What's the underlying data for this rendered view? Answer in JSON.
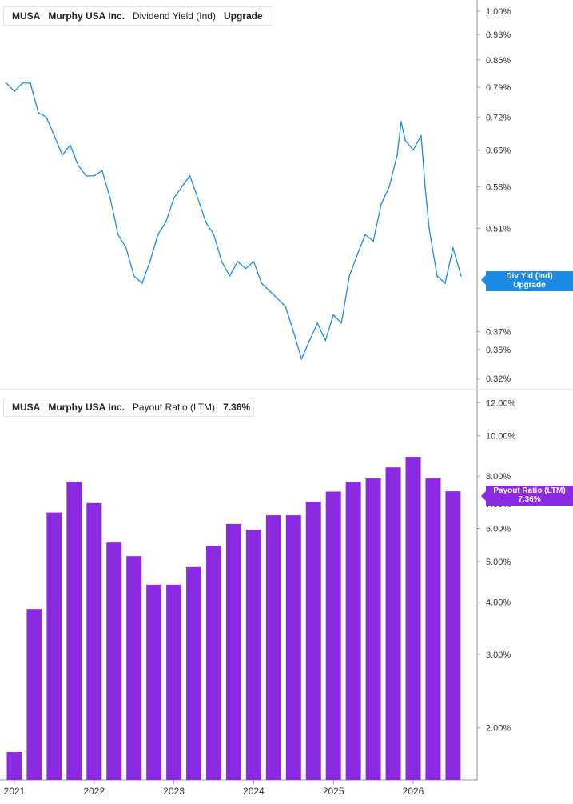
{
  "top_panel": {
    "ticker": "MUSA",
    "company": "Murphy USA Inc.",
    "metric": "Dividend Yield (Ind)",
    "value": "Upgrade",
    "flag_line1": "Div Yld (Ind)",
    "flag_line2": "Upgrade",
    "flag_hidden_tick": "0.4",
    "color": "#1a8ce6"
  },
  "bottom_panel": {
    "ticker": "MUSA",
    "company": "Murphy USA Inc.",
    "metric": "Payout Ratio (LTM)",
    "value": "7.36%",
    "flag_line1": "Payout Ratio (LTM)",
    "flag_line2": "7.36%",
    "flag_hidden_tick": "7.00%",
    "color": "#8a2be2"
  },
  "chart_data": [
    {
      "type": "line",
      "series": [
        {
          "name": "Dividend Yield (Ind)",
          "x": [
            2020.9,
            2021.0,
            2021.1,
            2021.2,
            2021.3,
            2021.4,
            2021.5,
            2021.6,
            2021.7,
            2021.8,
            2021.9,
            2022.0,
            2022.1,
            2022.2,
            2022.25,
            2022.3,
            2022.4,
            2022.5,
            2022.6,
            2022.7,
            2022.8,
            2022.9,
            2023.0,
            2023.1,
            2023.2,
            2023.3,
            2023.4,
            2023.5,
            2023.6,
            2023.7,
            2023.8,
            2023.9,
            2024.0,
            2024.1,
            2024.2,
            2024.3,
            2024.4,
            2024.5,
            2024.6,
            2024.7,
            2024.8,
            2024.9,
            2025.0,
            2025.1,
            2025.2,
            2025.3,
            2025.4,
            2025.5,
            2025.6,
            2025.7,
            2025.8,
            2025.85,
            2025.9,
            2026.0,
            2026.1,
            2026.15,
            2026.2,
            2026.3,
            2026.4,
            2026.5,
            2026.6
          ],
          "y": [
            0.8,
            0.78,
            0.8,
            0.8,
            0.73,
            0.72,
            0.68,
            0.64,
            0.66,
            0.62,
            0.6,
            0.6,
            0.61,
            0.56,
            0.53,
            0.5,
            0.48,
            0.44,
            0.43,
            0.46,
            0.5,
            0.52,
            0.56,
            0.58,
            0.6,
            0.56,
            0.52,
            0.5,
            0.46,
            0.44,
            0.46,
            0.45,
            0.46,
            0.43,
            0.42,
            0.41,
            0.4,
            0.37,
            0.34,
            0.36,
            0.38,
            0.36,
            0.39,
            0.38,
            0.44,
            0.47,
            0.5,
            0.49,
            0.55,
            0.58,
            0.64,
            0.71,
            0.67,
            0.65,
            0.68,
            0.58,
            0.51,
            0.44,
            0.43,
            0.48,
            0.44
          ]
        }
      ],
      "y_ticks": [
        "1.00%",
        "0.93%",
        "0.86%",
        "0.79%",
        "0.72%",
        "0.65%",
        "0.58%",
        "0.51%",
        "0.37%",
        "0.35%",
        "0.32%"
      ],
      "y_tick_values": [
        1.0,
        0.93,
        0.86,
        0.79,
        0.72,
        0.65,
        0.58,
        0.51,
        0.37,
        0.35,
        0.32
      ],
      "ylim": [
        0.31,
        1.02
      ],
      "y_scale": "log"
    },
    {
      "type": "bar",
      "series": [
        {
          "name": "Payout Ratio (LTM)",
          "x": [
            2021.0,
            2021.25,
            2021.5,
            2021.75,
            2022.0,
            2022.25,
            2022.5,
            2022.75,
            2023.0,
            2023.25,
            2023.5,
            2023.75,
            2024.0,
            2024.25,
            2024.5,
            2024.75,
            2025.0,
            2025.25,
            2025.5,
            2025.75,
            2026.0,
            2026.25,
            2026.5
          ],
          "values": [
            1.75,
            3.85,
            6.55,
            7.75,
            6.9,
            5.55,
            5.15,
            4.4,
            4.4,
            4.85,
            5.45,
            6.15,
            5.95,
            6.45,
            6.45,
            6.95,
            7.35,
            7.75,
            7.9,
            8.4,
            8.9,
            7.9,
            7.36
          ]
        }
      ],
      "y_ticks": [
        "12.00%",
        "10.00%",
        "8.00%",
        "6.00%",
        "5.00%",
        "4.00%",
        "3.00%",
        "2.00%"
      ],
      "y_tick_values": [
        12,
        10,
        8,
        6,
        5,
        4,
        3,
        2
      ],
      "ylim": [
        1.5,
        12.5
      ],
      "y_scale": "log",
      "x_ticks": [
        "2021",
        "2022",
        "2023",
        "2024",
        "2025",
        "2026"
      ],
      "x_tick_values": [
        2021,
        2022,
        2023,
        2024,
        2025,
        2026
      ]
    }
  ]
}
